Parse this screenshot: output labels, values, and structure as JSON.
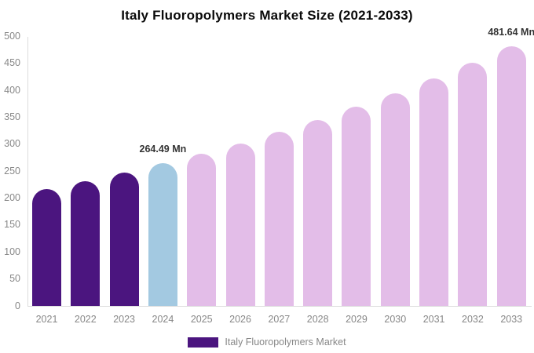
{
  "title": "Italy Fluoropolymers Market Size (2021-2033)",
  "chart_data": {
    "type": "bar",
    "title": "Italy Fluoropolymers Market Size (2021-2033)",
    "categories": [
      "2021",
      "2022",
      "2023",
      "2024",
      "2025",
      "2026",
      "2027",
      "2028",
      "2029",
      "2030",
      "2031",
      "2032",
      "2033"
    ],
    "values": [
      217,
      232,
      248,
      264.49,
      283,
      302,
      323,
      345,
      369,
      394,
      422,
      451,
      481.64
    ],
    "unit": "Mn",
    "xlabel": "",
    "ylabel": "",
    "ylim": [
      0,
      500
    ],
    "yticks": [
      0,
      50,
      100,
      150,
      200,
      250,
      300,
      350,
      400,
      450,
      500
    ],
    "grid": false,
    "legend_position": "bottom",
    "series_name": "Italy Fluoropolymers Market",
    "annotations": [
      {
        "category": "2024",
        "text": "264.49 Mn"
      },
      {
        "category": "2033",
        "text": "481.64 Mn"
      }
    ],
    "bar_colors": [
      "#4B157F",
      "#4B157F",
      "#4B157F",
      "#A3C9E1",
      "#E3BDE8",
      "#E3BDE8",
      "#E3BDE8",
      "#E3BDE8",
      "#E3BDE8",
      "#E3BDE8",
      "#E3BDE8",
      "#E3BDE8",
      "#E3BDE8"
    ]
  },
  "legend": {
    "label": "Italy Fluoropolymers Market",
    "swatch_color": "#4B157F"
  },
  "colors": {
    "historical_bar": "#4B157F",
    "current_year_bar": "#A3C9E1",
    "forecast_bar": "#E3BDE8",
    "axis_line": "#dddddd",
    "tick_text": "#878787",
    "annotation_text": "#333333",
    "title_text": "#0a0a0a",
    "background": "#ffffff"
  }
}
